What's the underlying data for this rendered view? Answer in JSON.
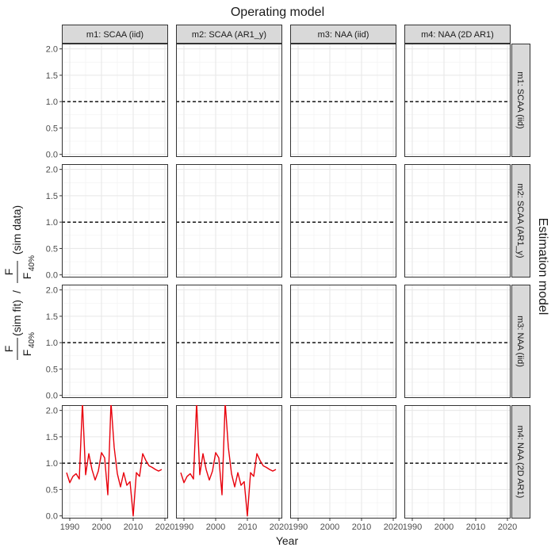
{
  "chart_data": {
    "type": "line",
    "title": "Operating model",
    "xlabel": "Year",
    "ylabel": {
      "numer": "F",
      "denom": "F",
      "denom_sub": "40%",
      "fit_tag": "(sim fit)",
      "slash": "/",
      "data_tag": "(sim data)"
    },
    "right_label": "Estimation model",
    "col_labels": [
      "m1: SCAA (iid)",
      "m2: SCAA (AR1_y)",
      "m3: NAA (iid)",
      "m4: NAA (2D AR1)"
    ],
    "row_labels": [
      "m1: SCAA (iid)",
      "m2: SCAA (AR1_y)",
      "m3: NAA (iid)",
      "m4: NAA (2D AR1)"
    ],
    "xlim": [
      1987.5,
      2021
    ],
    "ylim": [
      -0.05,
      2.1
    ],
    "x_ticks": [
      1990,
      2000,
      2010,
      2020
    ],
    "x_tick_labels": [
      "1990",
      "2000",
      "2010",
      "2020"
    ],
    "y_ticks": [
      0,
      0.5,
      1,
      1.5,
      2
    ],
    "y_tick_labels": [
      "0.0",
      "0.5",
      "1.0",
      "1.5",
      "2.0"
    ],
    "reference_line": 1.0,
    "grid": true,
    "series_color": "#e8000b",
    "series": [
      {
        "row": 3,
        "col": 0,
        "x": [
          1989,
          1990,
          1991,
          1992,
          1993,
          1994,
          1995,
          1996,
          1997,
          1998,
          1999,
          2000,
          2001,
          2002,
          2003,
          2004,
          2005,
          2006,
          2007,
          2008,
          2009,
          2010,
          2011,
          2012,
          2013,
          2014,
          2015,
          2016,
          2017,
          2018,
          2019
        ],
        "y": [
          0.82,
          0.63,
          0.75,
          0.8,
          0.7,
          2.15,
          0.78,
          1.18,
          0.88,
          0.68,
          0.85,
          1.2,
          1.1,
          0.4,
          2.15,
          1.3,
          0.8,
          0.55,
          0.82,
          0.58,
          0.65,
          0.0,
          0.82,
          0.75,
          1.18,
          1.05,
          0.95,
          0.92,
          0.88,
          0.85,
          0.88
        ]
      },
      {
        "row": 3,
        "col": 1,
        "x": [
          1989,
          1990,
          1991,
          1992,
          1993,
          1994,
          1995,
          1996,
          1997,
          1998,
          1999,
          2000,
          2001,
          2002,
          2003,
          2004,
          2005,
          2006,
          2007,
          2008,
          2009,
          2010,
          2011,
          2012,
          2013,
          2014,
          2015,
          2016,
          2017,
          2018,
          2019
        ],
        "y": [
          0.82,
          0.63,
          0.75,
          0.8,
          0.7,
          2.15,
          0.78,
          1.18,
          0.88,
          0.68,
          0.85,
          1.2,
          1.1,
          0.4,
          2.15,
          1.3,
          0.8,
          0.55,
          0.82,
          0.58,
          0.65,
          0.0,
          0.82,
          0.75,
          1.18,
          1.05,
          0.95,
          0.92,
          0.88,
          0.85,
          0.88
        ]
      }
    ]
  }
}
